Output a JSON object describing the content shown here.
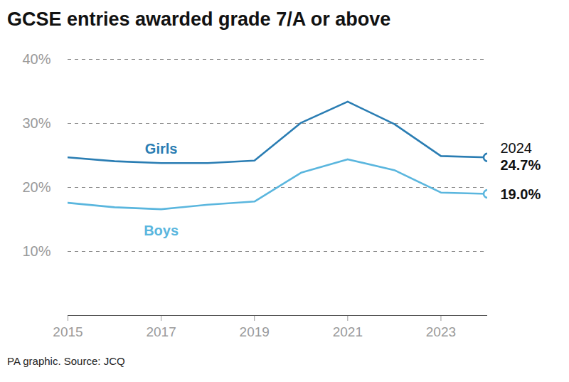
{
  "chart_data": {
    "type": "line",
    "title": "GCSE entries awarded grade 7/A or above",
    "caption": "PA graphic. Source: JCQ",
    "x": [
      2015,
      2016,
      2017,
      2018,
      2019,
      2020,
      2021,
      2022,
      2023,
      2024
    ],
    "series": [
      {
        "name": "Girls",
        "color": "#2a7db3",
        "values": [
          24.7,
          24.1,
          23.8,
          23.8,
          24.2,
          30.1,
          33.4,
          29.9,
          24.9,
          24.7
        ],
        "value_labels": [
          null,
          null,
          null,
          null,
          null,
          null,
          null,
          null,
          null,
          "24.7%"
        ]
      },
      {
        "name": "Boys",
        "color": "#5ab6de",
        "values": [
          17.6,
          16.9,
          16.6,
          17.3,
          17.8,
          22.3,
          24.4,
          22.7,
          19.2,
          19.0
        ],
        "value_labels": [
          null,
          null,
          null,
          null,
          null,
          null,
          null,
          null,
          null,
          "19.0%"
        ]
      }
    ],
    "annotations": [
      "2024"
    ],
    "xlim": [
      2015,
      2024
    ],
    "xticks": [
      2015,
      2017,
      2019,
      2021,
      2023
    ],
    "ylim": [
      0,
      40
    ],
    "yticks": [
      {
        "value": 10,
        "label": "10%"
      },
      {
        "value": 20,
        "label": "20%"
      },
      {
        "value": 30,
        "label": "30%"
      },
      {
        "value": 40,
        "label": "40%"
      }
    ],
    "grid": true
  }
}
